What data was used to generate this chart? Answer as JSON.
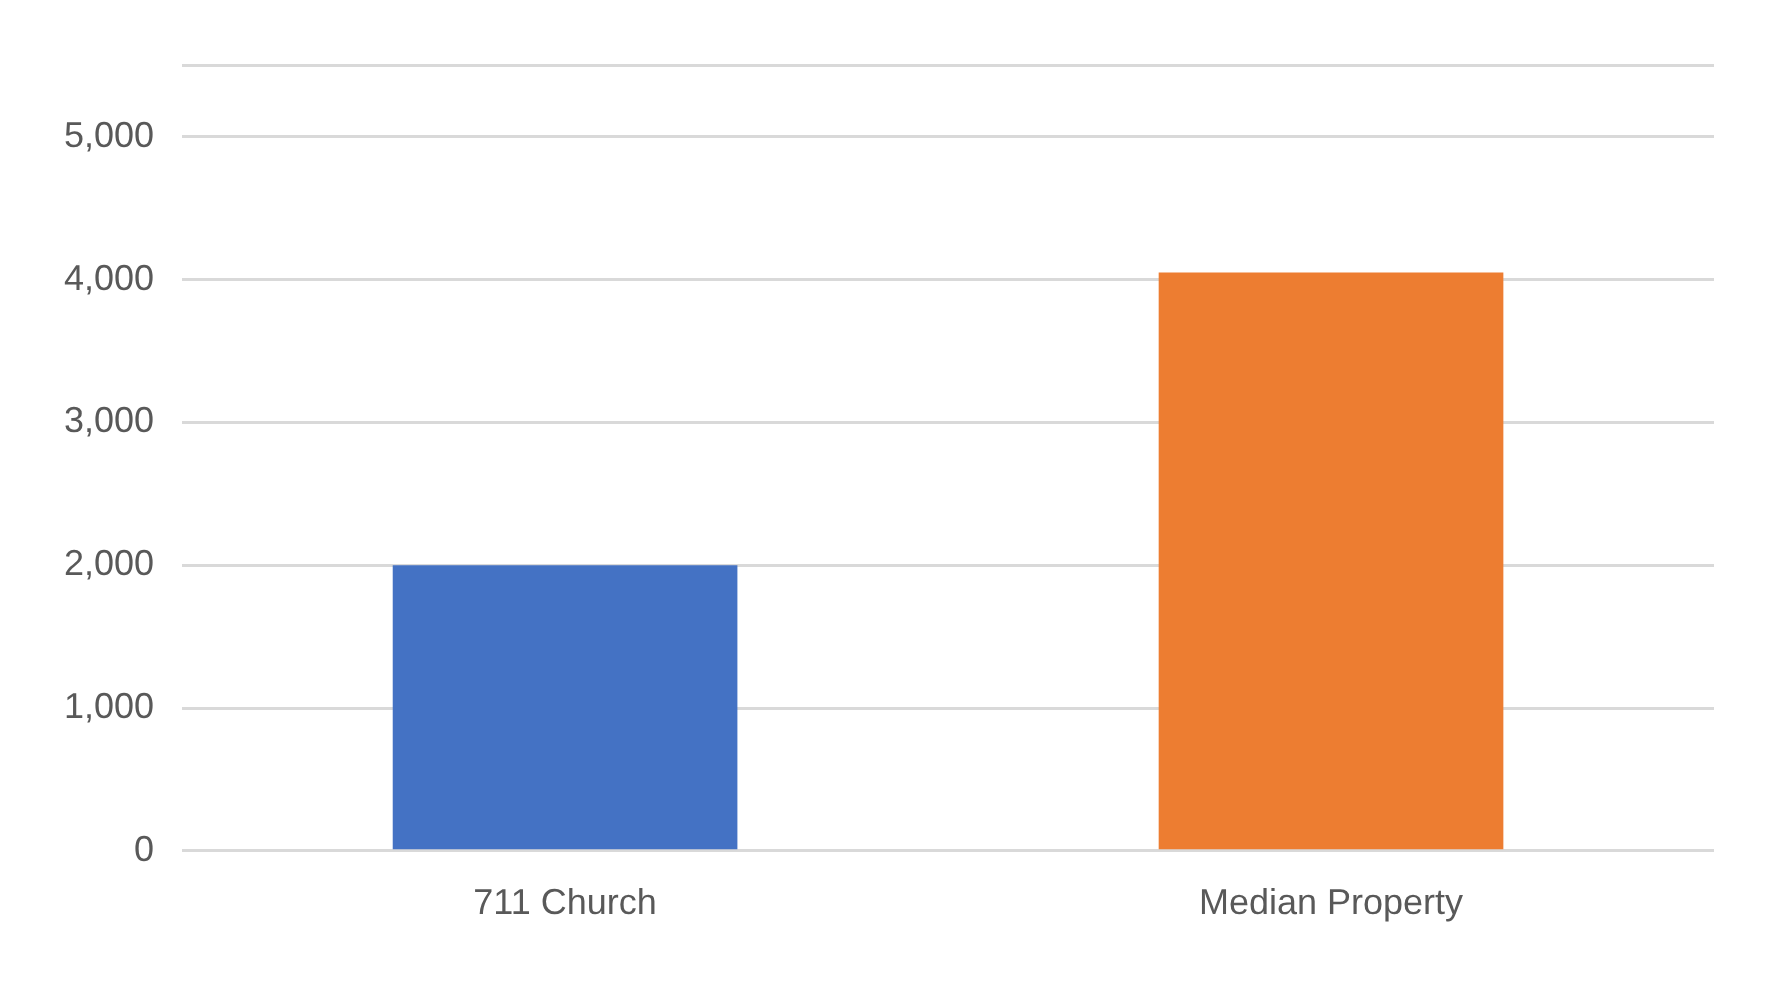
{
  "chart_data": {
    "type": "bar",
    "categories": [
      "711 Church",
      "Median Property"
    ],
    "values": [
      2000,
      4050
    ],
    "colors": [
      "#4472c4",
      "#ed7d31"
    ],
    "ylim": [
      0,
      5500
    ],
    "yticks": [
      {
        "value": 0,
        "label": "0"
      },
      {
        "value": 1000,
        "label": "1,000"
      },
      {
        "value": 2000,
        "label": "2,000"
      },
      {
        "value": 3000,
        "label": "3,000"
      },
      {
        "value": 4000,
        "label": "4,000"
      },
      {
        "value": 5000,
        "label": "5,000"
      },
      {
        "value": 5500,
        "label": null
      }
    ],
    "grid": "y",
    "legend": false
  }
}
